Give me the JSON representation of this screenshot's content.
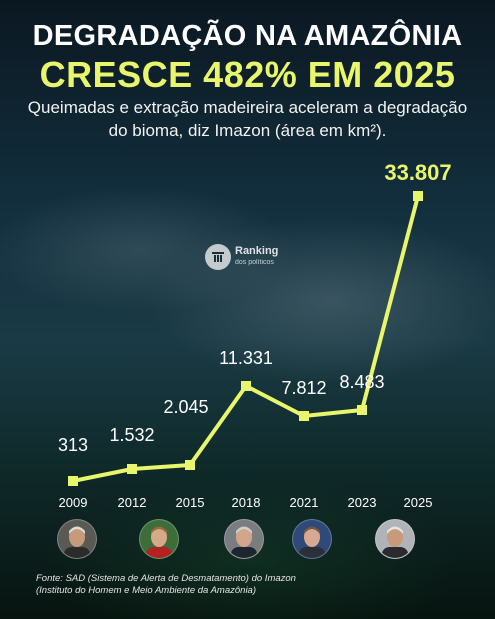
{
  "title_line1": "DEGRADAÇÃO NA AMAZÔNIA",
  "title_line2": "CRESCE 482% EM 2025",
  "subtitle": "Queimadas e extração madeireira aceleram a degradação do bioma, diz Imazon (área em km²).",
  "logo": {
    "line1": "Ranking",
    "line2": "dos políticos"
  },
  "source_line1": "Fonte: SAD (Sistema de Alerta de Desmatamento) do Imazon",
  "source_line2": "(Instituto do Homem e Meio Ambiente da Amazônia)",
  "colors": {
    "accent": "#e9f56a",
    "title": "#ffffff",
    "text": "#f2f2f2"
  },
  "chart_data": {
    "type": "line",
    "categories": [
      "2009",
      "2012",
      "2015",
      "2018",
      "2021",
      "2023",
      "2025"
    ],
    "values": [
      313,
      1532,
      2045,
      11331,
      7812,
      8483,
      33807
    ],
    "value_labels": [
      "313",
      "1.532",
      "2.045",
      "11.331",
      "7.812",
      "8.483",
      "33.807"
    ],
    "highlight_index": 6,
    "title": "",
    "xlabel": "",
    "ylabel": "",
    "y_axis_visible": false,
    "grid": false,
    "legend": "none"
  },
  "presidents": [
    {
      "icon": "lula-portrait-icon"
    },
    {
      "icon": "dilma-portrait-icon"
    },
    {
      "icon": "temer-portrait-icon"
    },
    {
      "icon": "bolsonaro-portrait-icon"
    },
    {
      "icon": "lula-portrait-icon"
    }
  ]
}
